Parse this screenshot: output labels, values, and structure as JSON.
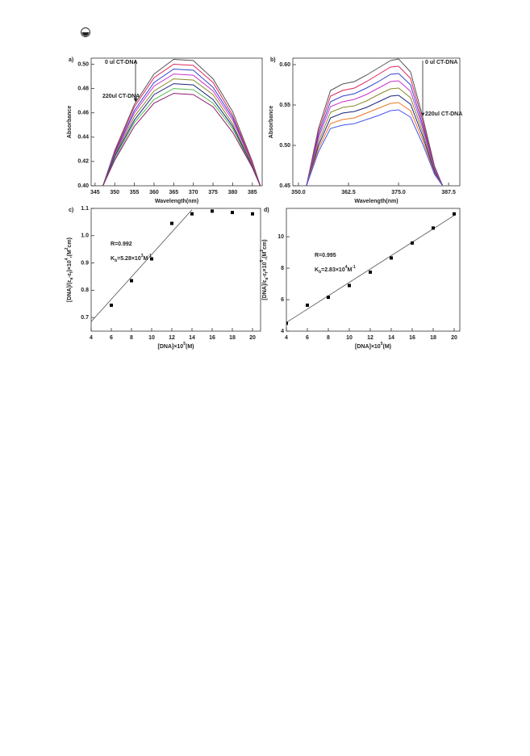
{
  "chart_data": [
    {
      "type": "line",
      "panel": "a)",
      "x_label": "Wavelength(nm)",
      "y_label": "Absorbance",
      "xlim": [
        344,
        387.5
      ],
      "ylim": [
        0.4,
        0.505
      ],
      "xticks": [
        345,
        350,
        355,
        360,
        365,
        370,
        375,
        380,
        385
      ],
      "yticks": [
        {
          "value": 0.4,
          "label": "0.40"
        },
        0.42,
        0.44,
        0.46,
        0.48,
        {
          "value": 0.5,
          "label": "0.50"
        }
      ],
      "annotations": [
        "0 ul CT-DNA",
        "220ul CT-DNA"
      ],
      "x": [
        347,
        350,
        355,
        360,
        365,
        370,
        375,
        380,
        385,
        387
      ],
      "series": [
        {
          "color": "#555555",
          "values": [
            0.4,
            0.429,
            0.467,
            0.492,
            0.504,
            0.503,
            0.488,
            0.461,
            0.42,
            0.4
          ]
        },
        {
          "color": "#e0245e",
          "values": [
            0.4,
            0.428,
            0.465,
            0.489,
            0.5,
            0.499,
            0.485,
            0.458,
            0.419,
            0.4
          ]
        },
        {
          "color": "#3344cc",
          "values": [
            0.4,
            0.427,
            0.462,
            0.485,
            0.496,
            0.495,
            0.481,
            0.456,
            0.418,
            0.4
          ]
        },
        {
          "color": "#cc33cc",
          "values": [
            0.4,
            0.426,
            0.46,
            0.482,
            0.492,
            0.491,
            0.478,
            0.454,
            0.418,
            0.4
          ]
        },
        {
          "color": "#8a8a2a",
          "values": [
            0.4,
            0.425,
            0.457,
            0.478,
            0.488,
            0.487,
            0.475,
            0.451,
            0.417,
            0.4
          ]
        },
        {
          "color": "#1a237e",
          "values": [
            0.4,
            0.424,
            0.454,
            0.475,
            0.484,
            0.483,
            0.471,
            0.449,
            0.416,
            0.4
          ]
        },
        {
          "color": "#55bb55",
          "values": [
            0.4,
            0.422,
            0.452,
            0.471,
            0.48,
            0.479,
            0.468,
            0.447,
            0.415,
            0.4
          ]
        },
        {
          "color": "#8e1a6e",
          "values": [
            0.4,
            0.421,
            0.449,
            0.468,
            0.476,
            0.475,
            0.465,
            0.444,
            0.415,
            0.4
          ]
        }
      ]
    },
    {
      "type": "line",
      "panel": "b)",
      "x_label": "Wavelength(nm)",
      "y_label": "Absorbance",
      "xlim": [
        348.6,
        390.3
      ],
      "ylim": [
        0.45,
        0.608
      ],
      "xticks": [
        {
          "value": 350,
          "label": "350.0"
        },
        362.5,
        {
          "value": 375,
          "label": "375.0"
        },
        387.5
      ],
      "yticks": [
        0.45,
        {
          "value": 0.5,
          "label": "0.50"
        },
        0.55,
        {
          "value": 0.6,
          "label": "0.60"
        }
      ],
      "annotations": [
        "0 ul CT-DNA",
        "220ul CT-DNA"
      ],
      "x": [
        352,
        355,
        358,
        361,
        364,
        367,
        370,
        373,
        375,
        378,
        381,
        384,
        386
      ],
      "series": [
        {
          "color": "#555555",
          "values": [
            0.45,
            0.521,
            0.568,
            0.576,
            0.579,
            0.587,
            0.596,
            0.605,
            0.607,
            0.591,
            0.536,
            0.474,
            0.45
          ]
        },
        {
          "color": "#e0245e",
          "values": [
            0.45,
            0.517,
            0.561,
            0.568,
            0.571,
            0.579,
            0.588,
            0.597,
            0.598,
            0.583,
            0.531,
            0.472,
            0.45
          ]
        },
        {
          "color": "#3344cc",
          "values": [
            0.45,
            0.513,
            0.554,
            0.561,
            0.564,
            0.571,
            0.579,
            0.588,
            0.589,
            0.575,
            0.526,
            0.471,
            0.45
          ]
        },
        {
          "color": "#cc33cc",
          "values": [
            0.45,
            0.509,
            0.548,
            0.554,
            0.557,
            0.563,
            0.571,
            0.579,
            0.58,
            0.567,
            0.522,
            0.47,
            0.45
          ]
        },
        {
          "color": "#8a8a2a",
          "values": [
            0.45,
            0.504,
            0.541,
            0.547,
            0.549,
            0.555,
            0.563,
            0.57,
            0.571,
            0.559,
            0.517,
            0.468,
            0.45
          ]
        },
        {
          "color": "#1a237e",
          "values": [
            0.45,
            0.5,
            0.534,
            0.54,
            0.542,
            0.547,
            0.554,
            0.561,
            0.562,
            0.551,
            0.512,
            0.467,
            0.45
          ]
        },
        {
          "color": "#ee7722",
          "values": [
            0.45,
            0.496,
            0.527,
            0.532,
            0.534,
            0.54,
            0.546,
            0.552,
            0.553,
            0.543,
            0.507,
            0.465,
            0.45
          ]
        },
        {
          "color": "#4455ee",
          "values": [
            0.45,
            0.492,
            0.521,
            0.525,
            0.527,
            0.532,
            0.537,
            0.543,
            0.544,
            0.535,
            0.502,
            0.464,
            0.45
          ]
        }
      ]
    },
    {
      "type": "scatter",
      "panel": "c)",
      "x_label": [
        {
          "text": "[DNA]×10"
        },
        {
          "text": "5",
          "shift": "sup"
        },
        {
          "text": "(M)"
        }
      ],
      "y_label": [
        {
          "text": "[DNA]/(ε"
        },
        {
          "text": "a",
          "shift": "sub"
        },
        {
          "text": "-ε"
        },
        {
          "text": "f",
          "shift": "sub"
        },
        {
          "text": ")×10"
        },
        {
          "text": "4",
          "shift": "sup"
        },
        {
          "text": ",(M"
        },
        {
          "text": "2",
          "shift": "sup"
        },
        {
          "text": "cm)"
        }
      ],
      "xlim": [
        4,
        20.8
      ],
      "ylim": [
        0.65,
        1.1
      ],
      "xticks": [
        4,
        6,
        8,
        10,
        12,
        14,
        16,
        18,
        20
      ],
      "yticks": [
        0.7,
        0.8,
        0.9,
        {
          "value": 1,
          "label": "1.0"
        },
        1.1
      ],
      "annotations": [
        [
          {
            "text": "R=0.992"
          }
        ],
        [
          {
            "text": "K"
          },
          {
            "text": "b",
            "shift": "sub"
          },
          {
            "text": "=5.28×10"
          },
          {
            "text": "3",
            "shift": "sup"
          },
          {
            "text": "M"
          },
          {
            "text": "-1",
            "shift": "sup"
          }
        ]
      ],
      "color": "#000000",
      "x": [
        6,
        8,
        10,
        12,
        14,
        16,
        18,
        20
      ],
      "values": [
        0.745,
        0.835,
        0.915,
        1.045,
        1.08,
        1.09,
        1.085,
        1.08
      ],
      "fit": {
        "x": [
          4,
          14
        ],
        "values": [
          0.685,
          1.095
        ]
      }
    },
    {
      "type": "scatter",
      "panel": "d)",
      "x_label": [
        {
          "text": "[DNA]×10"
        },
        {
          "text": "5",
          "shift": "sup"
        },
        {
          "text": "(M)"
        }
      ],
      "y_label": [
        {
          "text": "[DNA]/ε"
        },
        {
          "text": "a",
          "shift": "sub"
        },
        {
          "text": "-ε"
        },
        {
          "text": "f",
          "shift": "sub"
        },
        {
          "text": "×10"
        },
        {
          "text": "5",
          "shift": "sup"
        },
        {
          "text": ",(M"
        },
        {
          "text": "2",
          "shift": "sup"
        },
        {
          "text": "cm)"
        }
      ],
      "xlim": [
        4,
        20.54
      ],
      "ylim": [
        4,
        11.8
      ],
      "xticks": [
        4,
        6,
        8,
        10,
        12,
        14,
        16,
        18,
        20
      ],
      "yticks": [
        4,
        6,
        8,
        10
      ],
      "annotations": [
        [
          {
            "text": "R=0.995"
          }
        ],
        [
          {
            "text": "K"
          },
          {
            "text": "b",
            "shift": "sub"
          },
          {
            "text": "=2.83×10"
          },
          {
            "text": "4",
            "shift": "sup"
          },
          {
            "text": "M"
          },
          {
            "text": "-1",
            "shift": "sup"
          }
        ]
      ],
      "color": "#000000",
      "x": [
        4,
        6,
        8,
        10,
        12,
        14,
        16,
        18,
        20
      ],
      "values": [
        4.5,
        5.65,
        6.15,
        6.9,
        7.75,
        8.65,
        9.6,
        10.55,
        11.45
      ],
      "fit": {
        "x": [
          4,
          20
        ],
        "values": [
          4.55,
          11.35
        ]
      }
    }
  ]
}
